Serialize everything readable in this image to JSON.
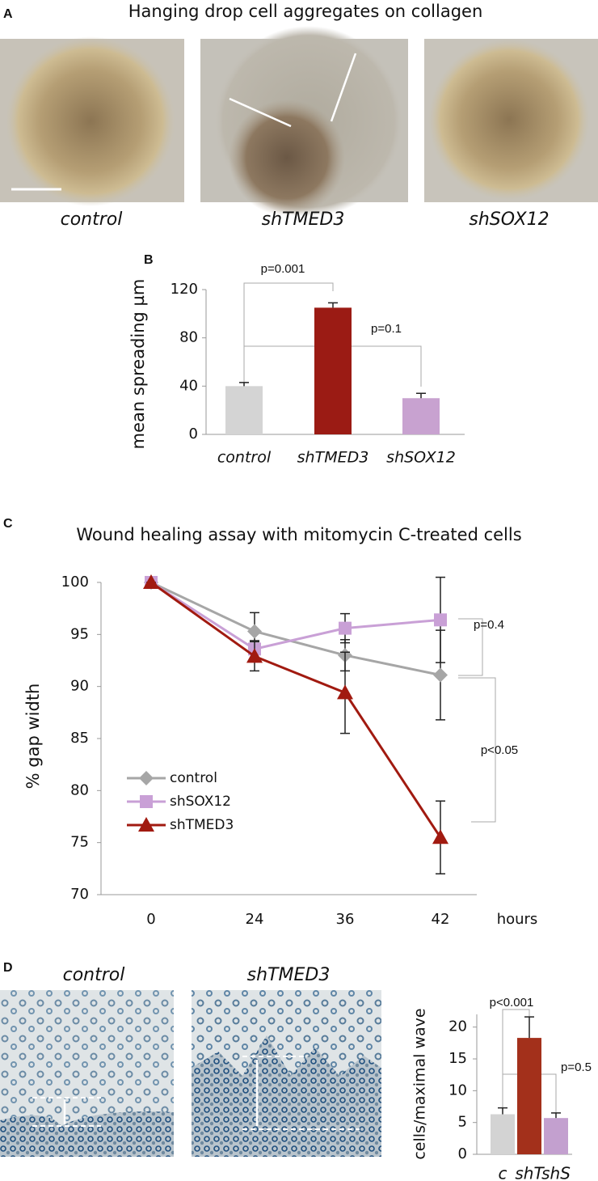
{
  "panels": {
    "a": {
      "label": "A",
      "title": "Hanging drop cell aggregates on collagen",
      "captions": [
        "control",
        "shTMED3",
        "shSOX12"
      ]
    },
    "d": {
      "label": "D",
      "captions": [
        "control",
        "shTMED3"
      ]
    }
  },
  "chart_data": [
    {
      "type": "bar",
      "panel_label": "B",
      "ylabel": "mean spreading µm",
      "categories": [
        "control",
        "shTMED3",
        "shSOX12"
      ],
      "values": [
        40,
        105,
        30
      ],
      "errors": [
        3,
        4,
        4
      ],
      "colors": [
        "#d4d4d4",
        "#9b1b14",
        "#c8a2d0"
      ],
      "ylim": [
        0,
        120
      ],
      "yticks": [
        0,
        40,
        80,
        120
      ],
      "annotations": [
        "p=0.001",
        "p=0.1"
      ]
    },
    {
      "type": "line",
      "panel_label": "C",
      "title": "Wound healing assay with mitomycin C-treated cells",
      "ylabel": "% gap width",
      "xlabel": "hours",
      "categories": [
        "0",
        "24",
        "36",
        "42"
      ],
      "series": [
        {
          "name": "control",
          "color": "#a6a6a6",
          "marker": "diamond",
          "values": [
            100,
            95.3,
            93,
            91.1
          ],
          "errors": [
            0,
            1.8,
            1.5,
            4.3
          ]
        },
        {
          "name": "shSOX12",
          "color": "#c9a0d6",
          "marker": "square",
          "values": [
            100,
            93.6,
            95.6,
            96.4
          ],
          "errors": [
            0,
            0.8,
            1.4,
            4.1
          ]
        },
        {
          "name": "shTMED3",
          "color": "#a11a10",
          "marker": "triangle",
          "values": [
            100,
            92.9,
            89.4,
            75.5
          ],
          "errors": [
            0,
            1.4,
            3.9,
            3.5
          ]
        }
      ],
      "ylim": [
        70,
        100
      ],
      "yticks": [
        70,
        75,
        80,
        85,
        90,
        95,
        100
      ],
      "annotations": [
        "p=0.4",
        "p<0.05"
      ]
    },
    {
      "type": "bar",
      "ylabel": "cells/maximal wave",
      "categories": [
        "c",
        "shT",
        "shS"
      ],
      "values": [
        6.3,
        18.3,
        5.7
      ],
      "errors": [
        1,
        3.3,
        0.8
      ],
      "colors": [
        "#d3d3d3",
        "#a3301b",
        "#c3a0cf"
      ],
      "ylim": [
        0,
        22
      ],
      "yticks": [
        0,
        5,
        10,
        15,
        20
      ],
      "annotations": [
        "p<0.001",
        "p=0.5"
      ]
    }
  ]
}
